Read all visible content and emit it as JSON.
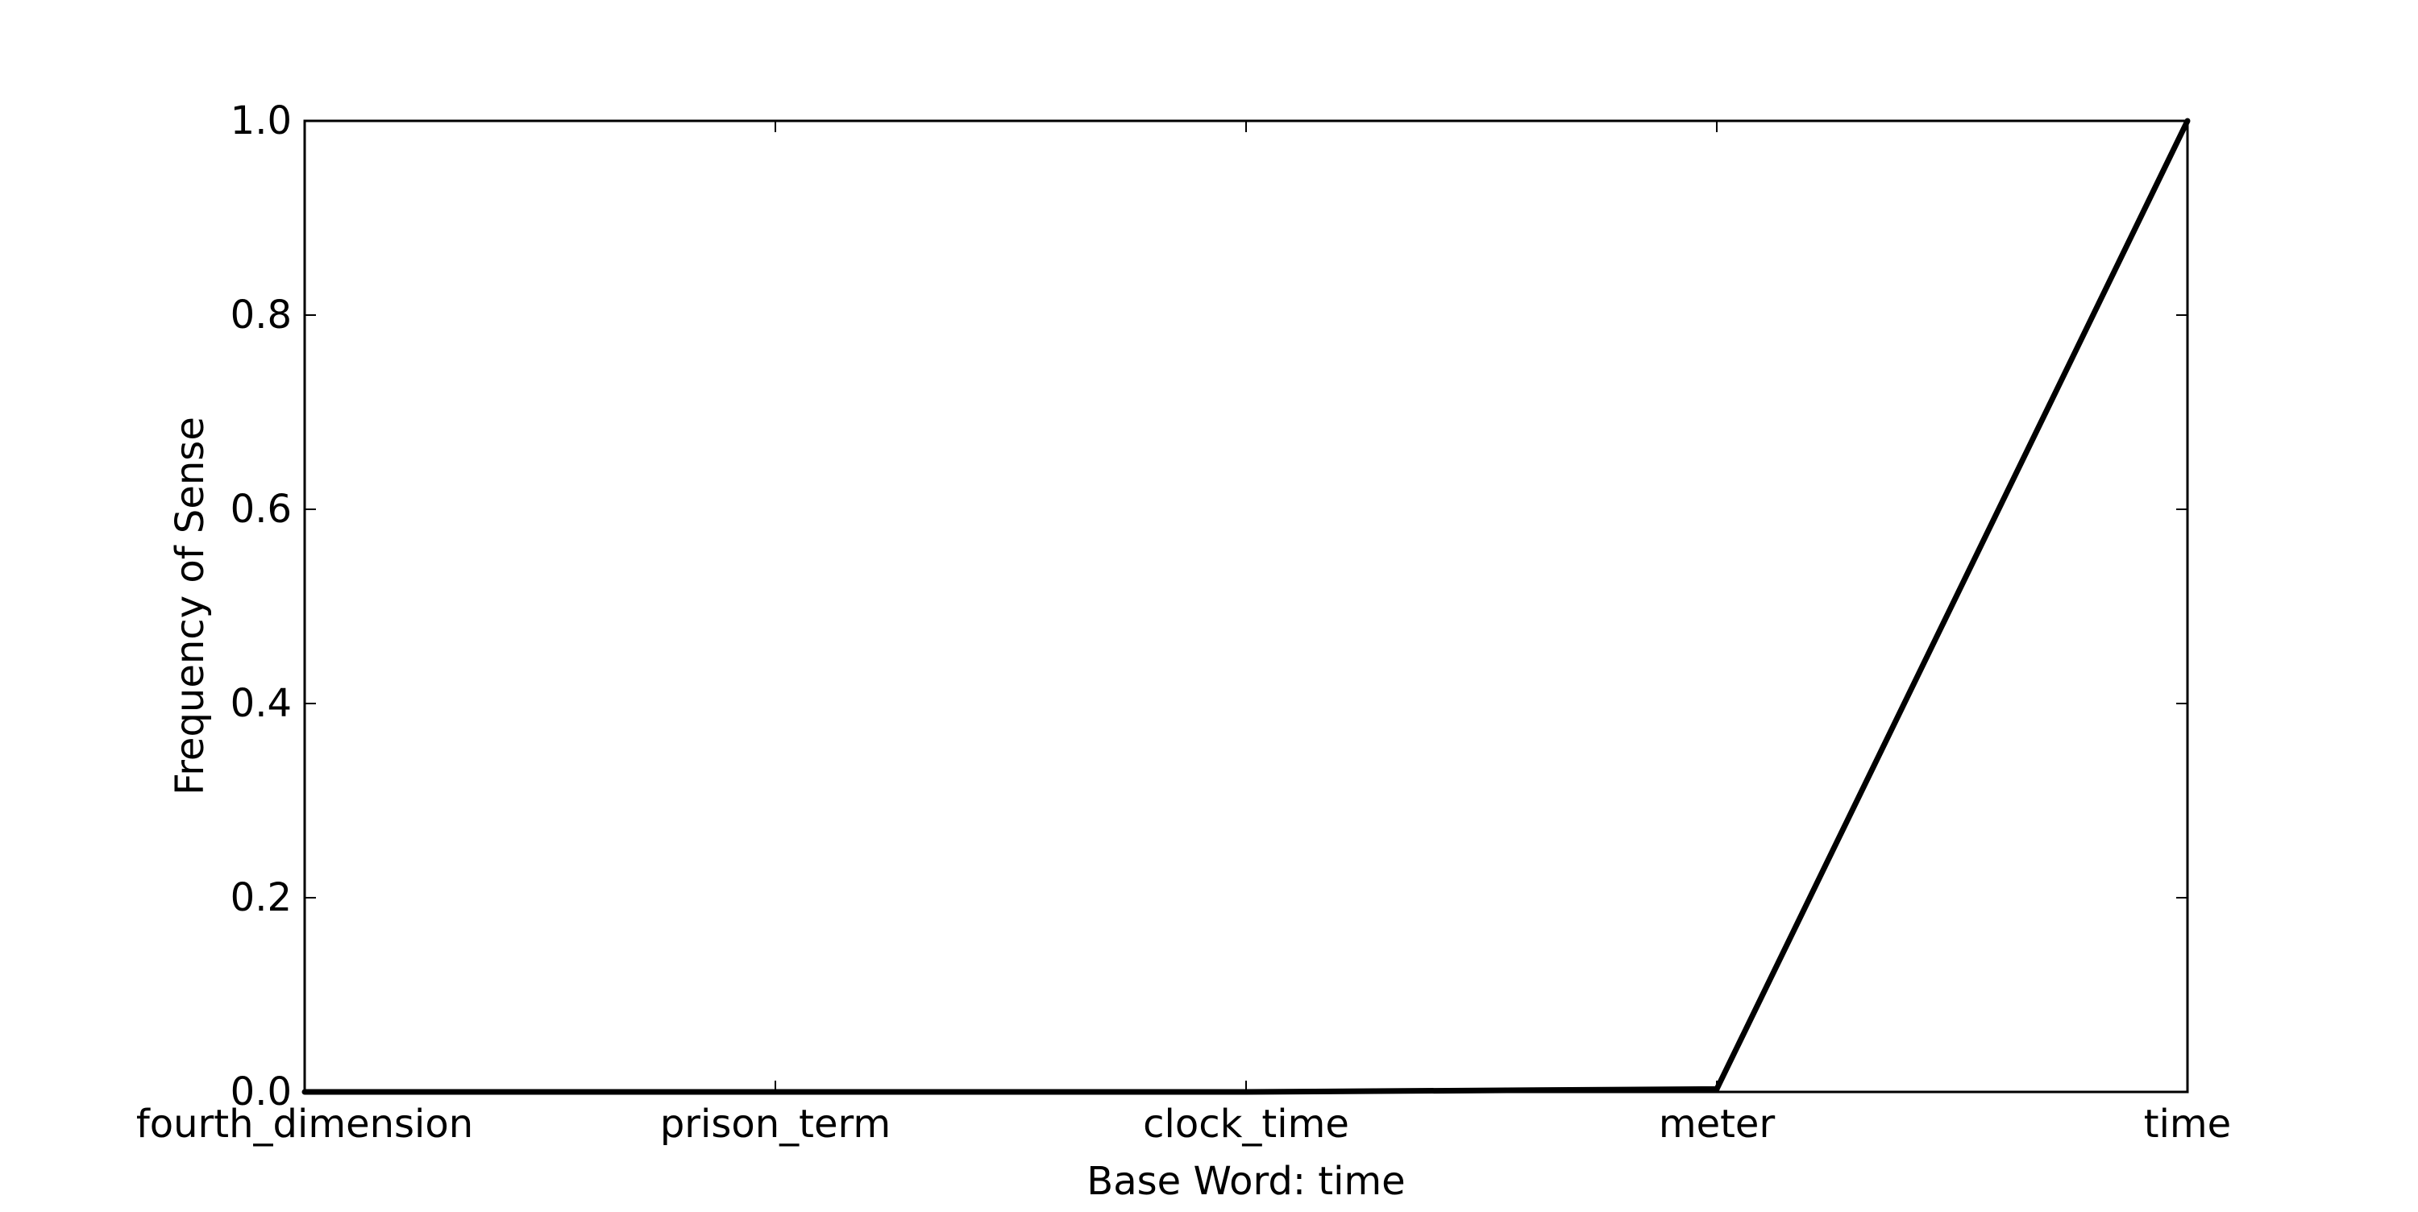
{
  "chart_data": {
    "type": "line",
    "categories": [
      "fourth_dimension",
      "prison_term",
      "clock_time",
      "meter",
      "time"
    ],
    "series": [
      {
        "values": [
          0.0,
          0.0,
          0.0,
          0.003,
          1.0
        ],
        "color": "#000000"
      }
    ],
    "xlabel": "Base Word: time",
    "ylabel": "Frequency of Sense",
    "ylim": [
      0.0,
      1.0
    ],
    "yticks": [
      0.0,
      0.2,
      0.4,
      0.6,
      0.8,
      1.0
    ],
    "ytick_labels": [
      "0.0",
      "0.2",
      "0.4",
      "0.6",
      "0.8",
      "1.0"
    ],
    "grid": false,
    "legend": "none"
  }
}
